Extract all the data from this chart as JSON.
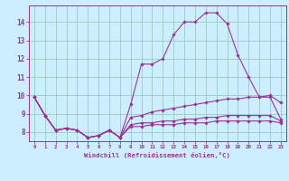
{
  "bg_color": "#cceeff",
  "grid_color": "#99ccbb",
  "line_color": "#993399",
  "xlim": [
    -0.5,
    23.5
  ],
  "ylim": [
    7.5,
    14.9
  ],
  "xticks": [
    0,
    1,
    2,
    3,
    4,
    5,
    6,
    7,
    8,
    9,
    10,
    11,
    12,
    13,
    14,
    15,
    16,
    17,
    18,
    19,
    20,
    21,
    22,
    23
  ],
  "yticks": [
    8,
    9,
    10,
    11,
    12,
    13,
    14
  ],
  "xlabel": "Windchill (Refroidissement éolien,°C)",
  "series": [
    [
      9.9,
      8.9,
      8.1,
      8.2,
      8.1,
      7.7,
      7.8,
      8.1,
      7.7,
      9.5,
      11.7,
      11.7,
      12.0,
      13.3,
      14.0,
      14.0,
      14.5,
      14.5,
      13.9,
      12.2,
      11.0,
      9.9,
      10.0,
      9.6
    ],
    [
      9.9,
      8.9,
      8.1,
      8.2,
      8.1,
      7.7,
      7.8,
      8.1,
      7.7,
      8.8,
      8.9,
      9.1,
      9.2,
      9.3,
      9.4,
      9.5,
      9.6,
      9.7,
      9.8,
      9.8,
      9.9,
      9.9,
      9.9,
      8.7
    ],
    [
      9.9,
      8.9,
      8.1,
      8.2,
      8.1,
      7.7,
      7.8,
      8.1,
      7.7,
      8.4,
      8.5,
      8.5,
      8.6,
      8.6,
      8.7,
      8.7,
      8.8,
      8.8,
      8.9,
      8.9,
      8.9,
      8.9,
      8.9,
      8.6
    ],
    [
      9.9,
      8.9,
      8.1,
      8.2,
      8.1,
      7.7,
      7.8,
      8.1,
      7.7,
      8.3,
      8.3,
      8.4,
      8.4,
      8.4,
      8.5,
      8.5,
      8.5,
      8.6,
      8.6,
      8.6,
      8.6,
      8.6,
      8.6,
      8.5
    ]
  ]
}
